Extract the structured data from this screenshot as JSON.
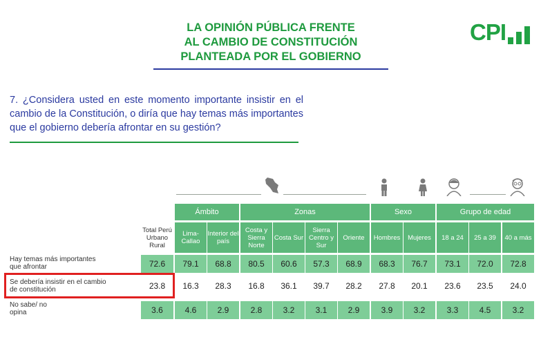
{
  "header": {
    "title_lines": [
      "LA OPINIÓN PÚBLICA FRENTE",
      "AL CAMBIO DE CONSTITUCIÓN",
      "PLANTEADA POR EL GOBIERNO"
    ],
    "logo_text": "CPI"
  },
  "question": {
    "text": "7. ¿Considera usted en este momento importante insistir en el cambio de la Constitución, o diría que hay temas más importantes que el gobierno debería afrontar en su gestión?"
  },
  "colors": {
    "green_dark": "#1e9a3e",
    "green_header": "#5cb87a",
    "green_cell": "#7ecd98",
    "blue": "#2b3aa0",
    "red_box": "#e02020"
  },
  "icons": [
    "peru-map-icon",
    "man-icon",
    "woman-icon",
    "young-person-icon",
    "elderly-person-icon"
  ],
  "table": {
    "groups": [
      "Ámbito",
      "Zonas",
      "Sexo",
      "Grupo de edad"
    ],
    "columns": [
      "Total Perú Urbano Rural",
      "Lima-Callao",
      "Interior del país",
      "Costa y Sierra Norte",
      "Costa Sur",
      "Sierra Centro y Sur",
      "Oriente",
      "Hombres",
      "Mujeres",
      "18 a 24",
      "25 a 39",
      "40 a más"
    ],
    "rows": [
      {
        "label": "Hay temas más importantes que afrontar",
        "values": [
          "72.6",
          "79.1",
          "68.8",
          "80.5",
          "60.6",
          "57.3",
          "68.9",
          "68.3",
          "76.7",
          "73.1",
          "72.0",
          "72.8"
        ]
      },
      {
        "label": "Se debería insistir en el cambio de constitución",
        "values": [
          "23.8",
          "16.3",
          "28.3",
          "16.8",
          "36.1",
          "39.7",
          "28.2",
          "27.8",
          "20.1",
          "23.6",
          "23.5",
          "24.0"
        ]
      },
      {
        "label": "No sabe/ no opina",
        "values": [
          "3.6",
          "4.6",
          "2.9",
          "2.8",
          "3.2",
          "3.1",
          "2.9",
          "3.9",
          "3.2",
          "3.3",
          "4.5",
          "3.2"
        ]
      }
    ]
  }
}
